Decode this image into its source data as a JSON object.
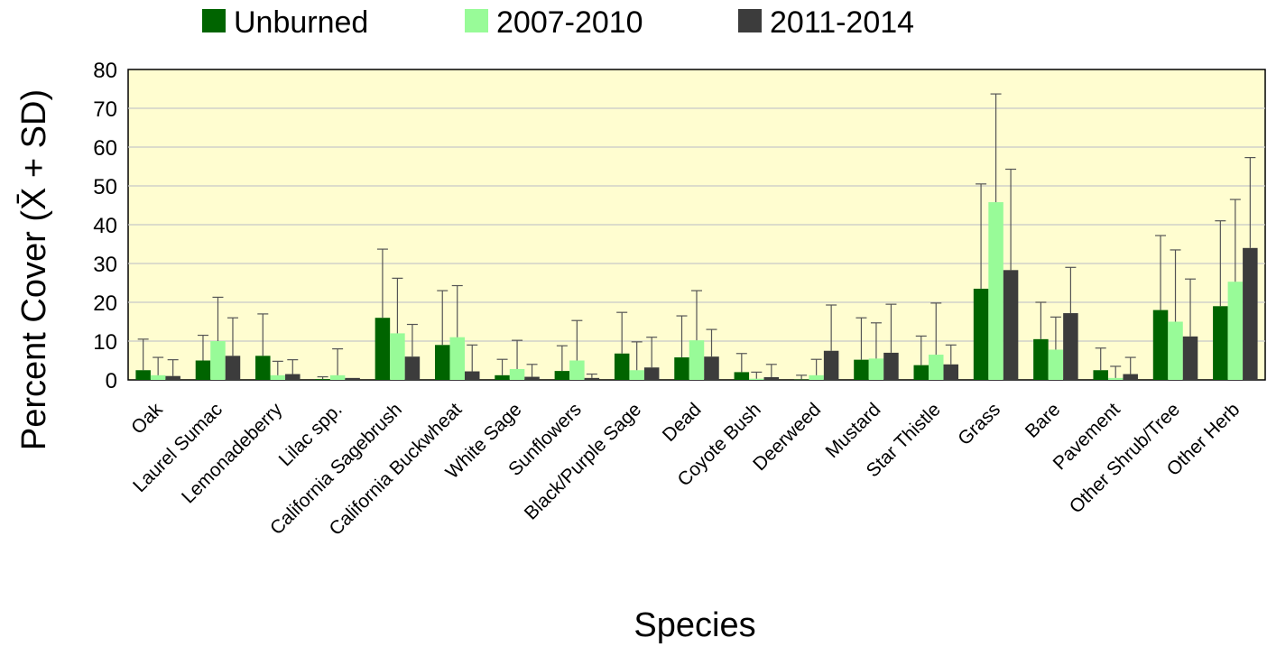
{
  "chart_data": {
    "type": "bar",
    "xlabel": "Species",
    "ylabel": "Percent Cover (X̄ + SD)",
    "ylim": [
      0,
      80
    ],
    "yticks": [
      0,
      10,
      20,
      30,
      40,
      50,
      60,
      70,
      80
    ],
    "grid": true,
    "legend_position": "top",
    "error_bars": "SD (upper)",
    "categories": [
      "Oak",
      "Laurel Sumac",
      "Lemonadeberry",
      "Lilac spp.",
      "California Sagebrush",
      "California Buckwheat",
      "White Sage",
      "Sunflowers",
      "Black/Purple Sage",
      "Dead",
      "Coyote Bush",
      "Deerweed",
      "Mustard",
      "Star Thistle",
      "Grass",
      "Bare",
      "Pavement",
      "Other Shrub/Tree",
      "Other Herb"
    ],
    "series": [
      {
        "name": "Unburned",
        "color": "#006400",
        "values": [
          2.5,
          5,
          6.2,
          0.2,
          16,
          9,
          1.2,
          2.3,
          6.8,
          5.8,
          2,
          0.1,
          5.2,
          3.8,
          23.5,
          10.5,
          2.5,
          18,
          19
        ],
        "sd_upper": [
          10.5,
          11.5,
          17,
          0.8,
          33.7,
          23,
          5.3,
          8.8,
          17.4,
          16.5,
          6.8,
          1.2,
          16,
          11.3,
          50.5,
          20,
          8.2,
          37.2,
          41
        ]
      },
      {
        "name": "2007-2010",
        "color": "#98FB98",
        "values": [
          1.2,
          10,
          1.2,
          1.2,
          12,
          11,
          2.8,
          5,
          2.5,
          10.2,
          0.3,
          1.2,
          5.5,
          6.5,
          45.8,
          7.8,
          0.5,
          15,
          25.3
        ],
        "sd_upper": [
          5.8,
          21.3,
          4.8,
          8,
          26.2,
          24.3,
          10.2,
          15.3,
          9.8,
          23,
          2,
          5.3,
          14.7,
          19.8,
          73.7,
          16.2,
          3.5,
          33.5,
          46.5
        ]
      },
      {
        "name": "2011-2014",
        "color": "#3C3C3C",
        "values": [
          1,
          6.2,
          1.5,
          0.5,
          6,
          2.2,
          0.8,
          0.5,
          3.2,
          6,
          0.7,
          7.5,
          7,
          4,
          28.3,
          17.2,
          1.5,
          11.2,
          34
        ],
        "sd_upper": [
          5.2,
          16,
          5.2,
          0.5,
          14.3,
          9,
          4,
          1.5,
          11,
          13,
          4,
          19.3,
          19.5,
          9,
          54.3,
          29,
          5.8,
          26,
          57.3
        ]
      }
    ]
  }
}
